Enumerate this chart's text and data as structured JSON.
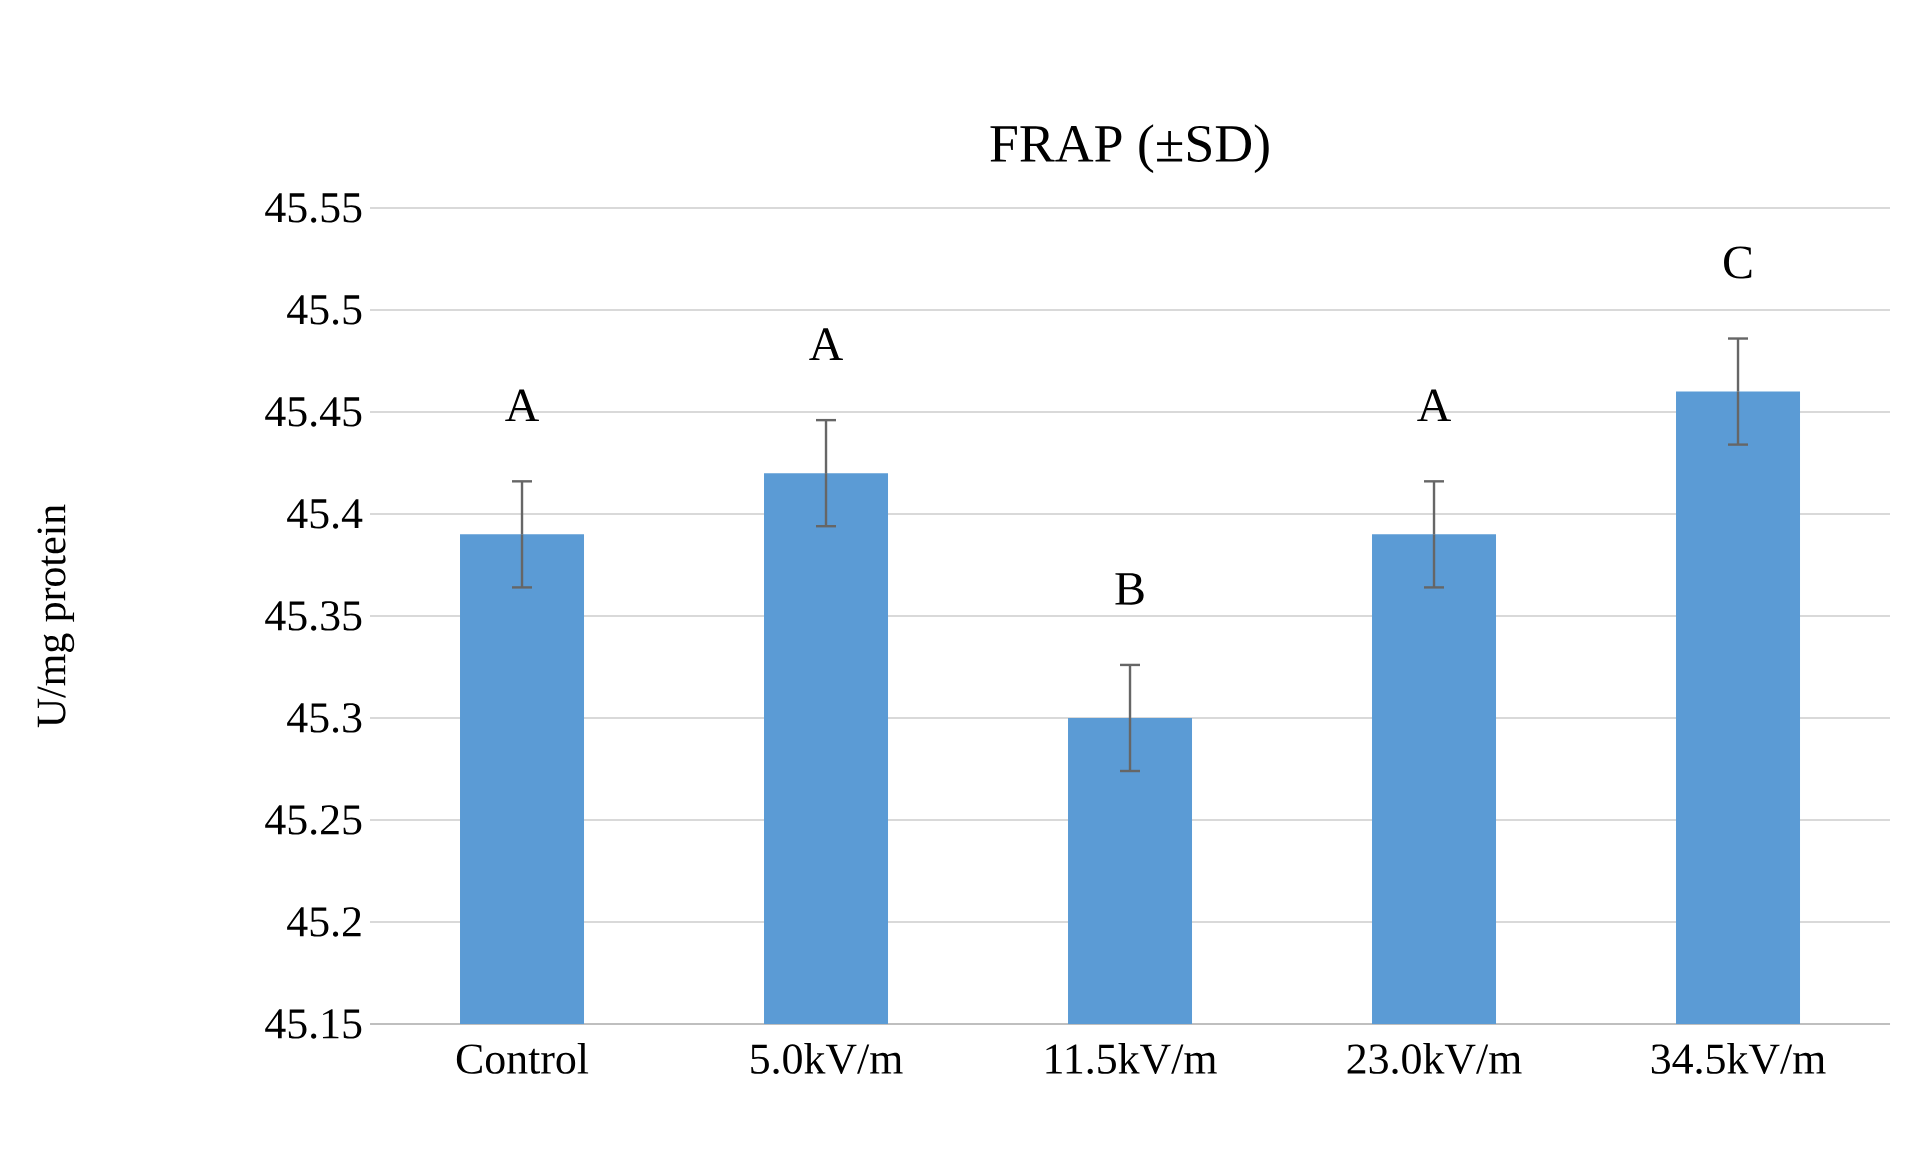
{
  "chart_data": {
    "type": "bar",
    "title": "FRAP (±SD)",
    "ylabel": "U/mg protein",
    "categories": [
      "Control",
      "5.0kV/m",
      "11.5kV/m",
      "23.0kV/m",
      "34.5kV/m"
    ],
    "values": [
      45.39,
      45.42,
      45.3,
      45.39,
      45.46
    ],
    "errors": [
      0.026,
      0.026,
      0.026,
      0.026,
      0.026
    ],
    "color": "#5b9bd5",
    "ylim": [
      45.15,
      45.55
    ],
    "yticks": [
      45.15,
      45.2,
      45.25,
      45.3,
      45.35,
      45.4,
      45.45,
      45.5,
      45.55
    ],
    "grid": "y",
    "annotations": [
      "A",
      "A",
      "B",
      "A",
      "C"
    ]
  }
}
